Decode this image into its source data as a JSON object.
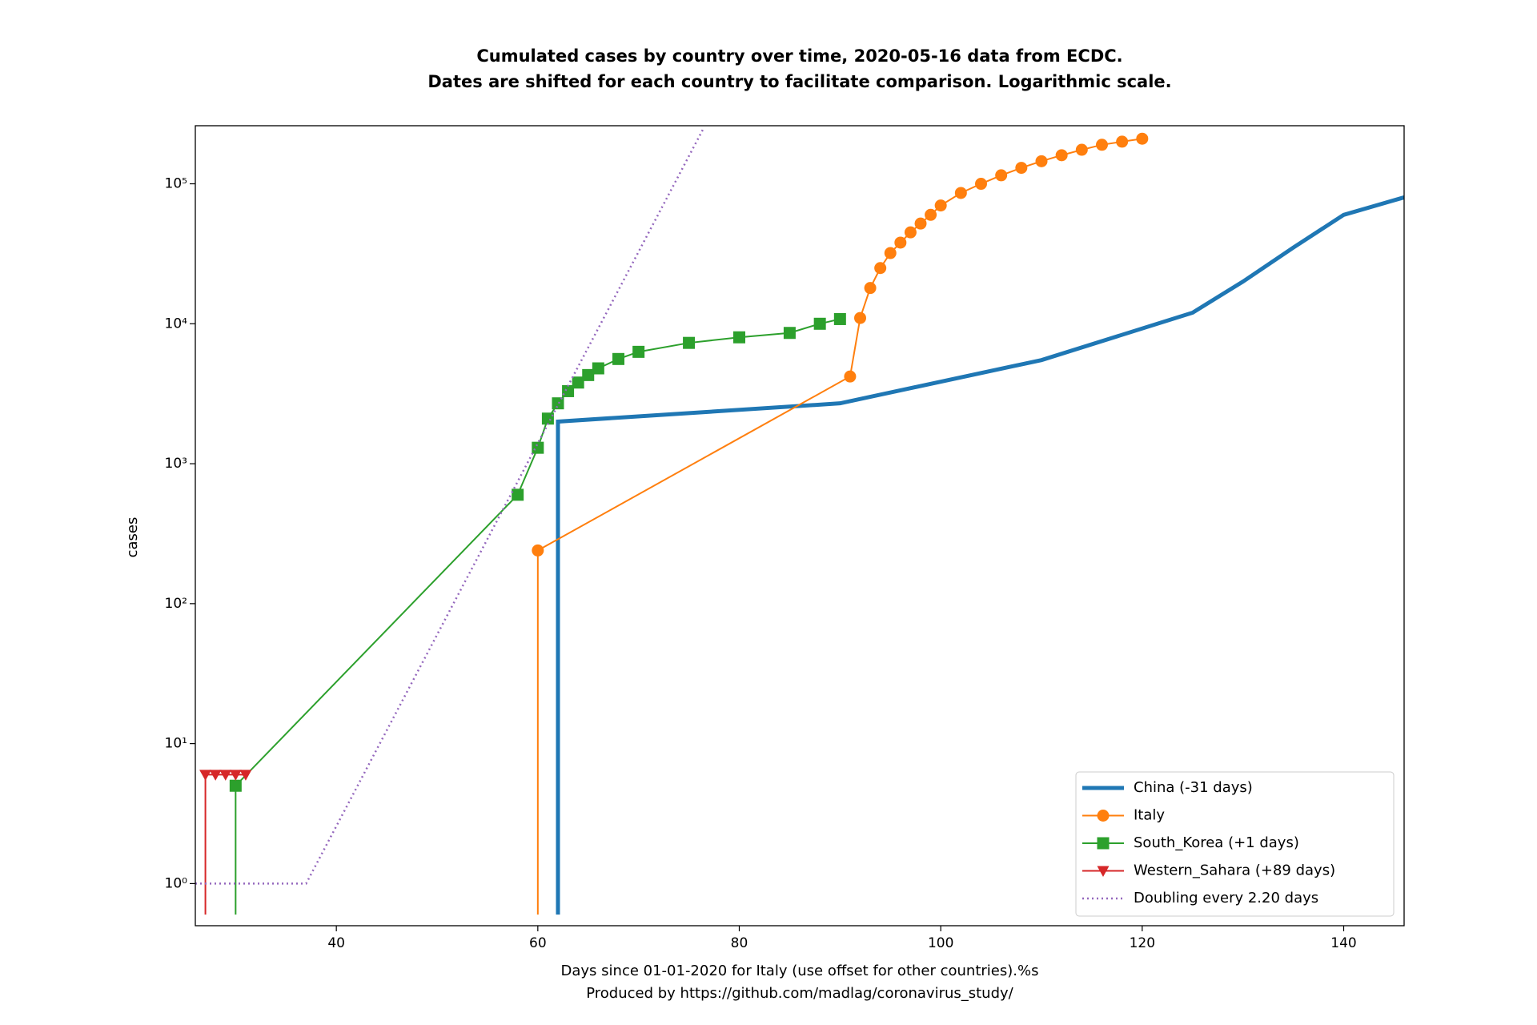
{
  "chart_data": {
    "type": "line",
    "title": "Cumulated cases by country over time, 2020-05-16 data from ECDC.",
    "subtitle": "Dates are shifted for each country to facilitate comparison. Logarithmic scale.",
    "x_label": "Days since 01-01-2020 for Italy (use offset for other countries).%s",
    "x_label_note": "Produced by https://github.com/madlag/coronavirus_study/",
    "y_label": "cases",
    "log_scale_y": true,
    "legend_corner": "lower right",
    "xlim": [
      26,
      146
    ],
    "ylim": [
      0.5,
      260000
    ],
    "xticks": [
      40,
      60,
      80,
      100,
      120,
      140
    ],
    "yticks": [
      {
        "value": 1,
        "label": "10⁰"
      },
      {
        "value": 10,
        "label": "10¹"
      },
      {
        "value": 100,
        "label": "10²"
      },
      {
        "value": 1000,
        "label": "10³"
      },
      {
        "value": 10000,
        "label": "10⁴"
      },
      {
        "value": 100000,
        "label": "10⁵"
      }
    ],
    "series": [
      {
        "name": "China (-31 days)",
        "color": "#1f77b4",
        "marker": "none",
        "linewidth": 5,
        "x": [
          62,
          62,
          90,
          110,
          125,
          130,
          135,
          140,
          146
        ],
        "values": [
          0.6,
          2000,
          2700,
          5500,
          12000,
          20000,
          35000,
          60000,
          80000
        ]
      },
      {
        "name": "Italy",
        "color": "#ff7f0e",
        "marker": "circle",
        "linewidth": 2,
        "x": [
          60,
          60,
          91,
          92,
          93,
          94,
          95,
          96,
          97,
          98,
          99,
          100,
          102,
          104,
          106,
          108,
          110,
          112,
          114,
          116,
          118,
          120
        ],
        "values": [
          0.6,
          240,
          4200,
          11000,
          18000,
          25000,
          32000,
          38000,
          45000,
          52000,
          60000,
          70000,
          86000,
          100000,
          115000,
          130000,
          145000,
          160000,
          175000,
          190000,
          200000,
          210000
        ]
      },
      {
        "name": "South_Korea (+1 days)",
        "color": "#2ca02c",
        "marker": "square",
        "linewidth": 2,
        "x": [
          30,
          30,
          58,
          60,
          61,
          62,
          63,
          64,
          65,
          66,
          68,
          70,
          75,
          80,
          85,
          88,
          90
        ],
        "values": [
          0.6,
          5,
          600,
          1300,
          2100,
          2700,
          3300,
          3800,
          4300,
          4800,
          5600,
          6300,
          7300,
          8000,
          8600,
          10000,
          10800
        ]
      },
      {
        "name": "Western_Sahara (+89 days)",
        "color": "#d62728",
        "marker": "triangle",
        "linewidth": 2,
        "x": [
          27,
          27,
          28,
          29,
          30,
          31
        ],
        "values": [
          0.6,
          6,
          6,
          6,
          6,
          6
        ]
      },
      {
        "name": "Doubling every 2.20 days",
        "color": "#9467bd",
        "marker": "none",
        "linewidth": 2.5,
        "dashed": true,
        "x": [
          26,
          37,
          76.5
        ],
        "values": [
          1,
          1,
          253000
        ]
      }
    ]
  }
}
